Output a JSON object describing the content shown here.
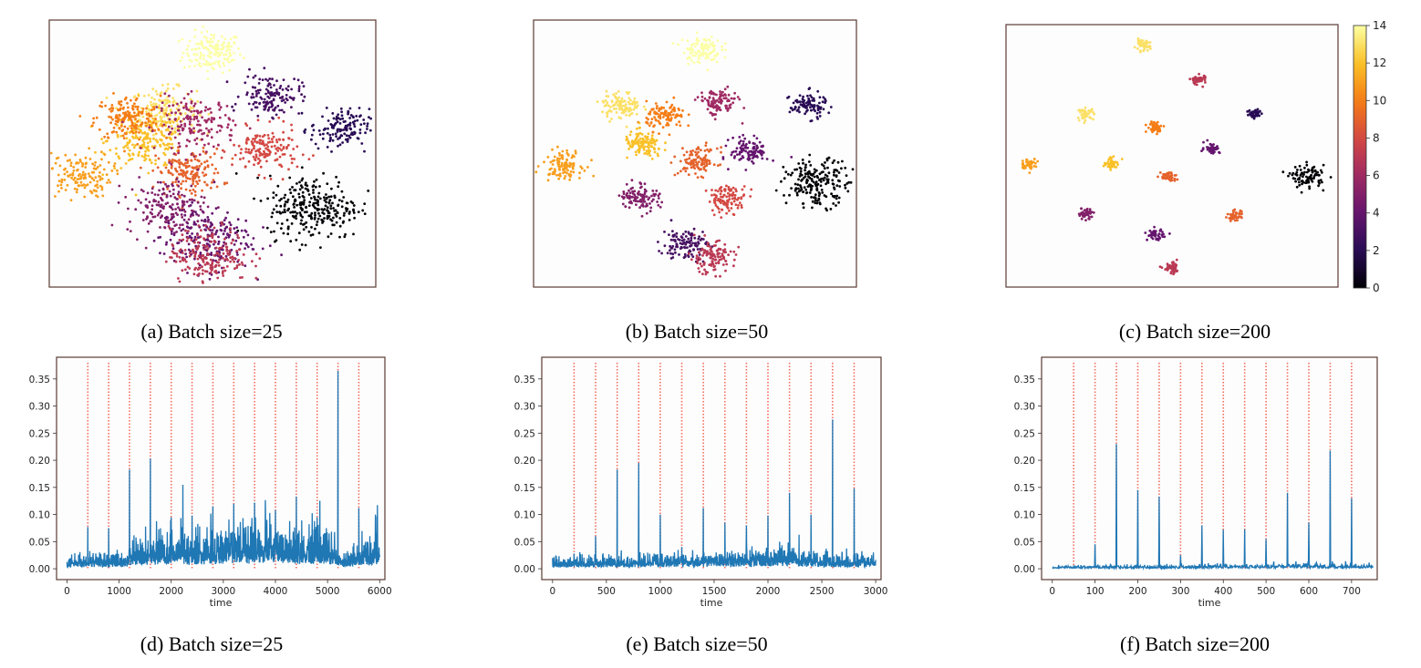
{
  "captions": {
    "a": "(a) Batch size=25",
    "b": "(b) Batch size=50",
    "c": "(c) Batch size=200",
    "d": "(d) Batch size=25",
    "e": "(e) Batch size=50",
    "f": "(f) Batch size=200"
  },
  "colorbar": {
    "min": 0,
    "max": 14,
    "ticks": [
      "0",
      "2",
      "4",
      "6",
      "8",
      "10",
      "12",
      "14"
    ],
    "colormap": "inferno"
  },
  "chart_data": [
    {
      "type": "scatter",
      "caption": "(a) Batch size=25",
      "xlim": [
        0,
        1
      ],
      "ylim": [
        0,
        1
      ],
      "clusters": [
        {
          "label": 14,
          "x": 0.5,
          "y": 0.88,
          "spread": 0.045,
          "n": 160
        },
        {
          "label": 13,
          "x": 0.35,
          "y": 0.66,
          "spread": 0.05,
          "n": 170
        },
        {
          "label": 12,
          "x": 0.3,
          "y": 0.55,
          "spread": 0.06,
          "n": 200
        },
        {
          "label": 10,
          "x": 0.24,
          "y": 0.63,
          "spread": 0.05,
          "n": 170
        },
        {
          "label": 11,
          "x": 0.09,
          "y": 0.42,
          "spread": 0.05,
          "n": 150
        },
        {
          "label": 9,
          "x": 0.43,
          "y": 0.43,
          "spread": 0.05,
          "n": 160
        },
        {
          "label": 6,
          "x": 0.45,
          "y": 0.61,
          "spread": 0.06,
          "n": 170
        },
        {
          "label": 8,
          "x": 0.66,
          "y": 0.51,
          "spread": 0.05,
          "n": 160
        },
        {
          "label": 3,
          "x": 0.68,
          "y": 0.72,
          "spread": 0.045,
          "n": 140
        },
        {
          "label": 2,
          "x": 0.89,
          "y": 0.59,
          "spread": 0.045,
          "n": 140
        },
        {
          "label": 0,
          "x": 0.81,
          "y": 0.3,
          "spread": 0.07,
          "n": 280
        },
        {
          "label": 5,
          "x": 0.36,
          "y": 0.3,
          "spread": 0.06,
          "n": 170
        },
        {
          "label": 4,
          "x": 0.48,
          "y": 0.18,
          "spread": 0.07,
          "n": 220
        },
        {
          "label": 7,
          "x": 0.49,
          "y": 0.12,
          "spread": 0.06,
          "n": 200
        }
      ]
    },
    {
      "type": "scatter",
      "caption": "(b) Batch size=50",
      "xlim": [
        0,
        1
      ],
      "ylim": [
        0,
        1
      ],
      "clusters": [
        {
          "label": 14,
          "x": 0.52,
          "y": 0.89,
          "spread": 0.03,
          "n": 110
        },
        {
          "label": 13,
          "x": 0.27,
          "y": 0.68,
          "spread": 0.03,
          "n": 110
        },
        {
          "label": 10,
          "x": 0.41,
          "y": 0.64,
          "spread": 0.03,
          "n": 110
        },
        {
          "label": 12,
          "x": 0.34,
          "y": 0.53,
          "spread": 0.03,
          "n": 120
        },
        {
          "label": 11,
          "x": 0.09,
          "y": 0.46,
          "spread": 0.03,
          "n": 110
        },
        {
          "label": 9,
          "x": 0.51,
          "y": 0.47,
          "spread": 0.03,
          "n": 110
        },
        {
          "label": 6,
          "x": 0.57,
          "y": 0.69,
          "spread": 0.03,
          "n": 110
        },
        {
          "label": 4,
          "x": 0.67,
          "y": 0.51,
          "spread": 0.03,
          "n": 110
        },
        {
          "label": 2,
          "x": 0.85,
          "y": 0.68,
          "spread": 0.028,
          "n": 100
        },
        {
          "label": 0,
          "x": 0.88,
          "y": 0.39,
          "spread": 0.05,
          "n": 200
        },
        {
          "label": 8,
          "x": 0.6,
          "y": 0.33,
          "spread": 0.03,
          "n": 110
        },
        {
          "label": 5,
          "x": 0.33,
          "y": 0.34,
          "spread": 0.03,
          "n": 110
        },
        {
          "label": 3,
          "x": 0.47,
          "y": 0.16,
          "spread": 0.035,
          "n": 120
        },
        {
          "label": 7,
          "x": 0.55,
          "y": 0.11,
          "spread": 0.035,
          "n": 120
        }
      ]
    },
    {
      "type": "scatter",
      "caption": "(c) Batch size=200",
      "xlim": [
        0,
        1
      ],
      "ylim": [
        0,
        1
      ],
      "clusters": [
        {
          "label": 13,
          "x": 0.41,
          "y": 0.92,
          "spread": 0.012,
          "n": 45
        },
        {
          "label": 7,
          "x": 0.58,
          "y": 0.79,
          "spread": 0.012,
          "n": 45
        },
        {
          "label": 13,
          "x": 0.24,
          "y": 0.66,
          "spread": 0.012,
          "n": 45
        },
        {
          "label": 10,
          "x": 0.45,
          "y": 0.61,
          "spread": 0.012,
          "n": 45
        },
        {
          "label": 2,
          "x": 0.75,
          "y": 0.66,
          "spread": 0.012,
          "n": 45
        },
        {
          "label": 4,
          "x": 0.62,
          "y": 0.53,
          "spread": 0.012,
          "n": 45
        },
        {
          "label": 11,
          "x": 0.07,
          "y": 0.47,
          "spread": 0.012,
          "n": 45
        },
        {
          "label": 12,
          "x": 0.32,
          "y": 0.47,
          "spread": 0.012,
          "n": 45
        },
        {
          "label": 9,
          "x": 0.49,
          "y": 0.42,
          "spread": 0.012,
          "n": 45
        },
        {
          "label": 0,
          "x": 0.91,
          "y": 0.42,
          "spread": 0.025,
          "n": 90
        },
        {
          "label": 5,
          "x": 0.24,
          "y": 0.28,
          "spread": 0.012,
          "n": 45
        },
        {
          "label": 9,
          "x": 0.69,
          "y": 0.27,
          "spread": 0.012,
          "n": 45
        },
        {
          "label": 4,
          "x": 0.45,
          "y": 0.2,
          "spread": 0.012,
          "n": 45
        },
        {
          "label": 7,
          "x": 0.5,
          "y": 0.07,
          "spread": 0.012,
          "n": 45
        }
      ]
    },
    {
      "type": "line",
      "caption": "(d) Batch size=25",
      "xlabel": "time",
      "xlim": [
        -200,
        6100
      ],
      "ylim": [
        -0.02,
        0.39
      ],
      "xticks": [
        0,
        1000,
        2000,
        3000,
        4000,
        5000,
        6000
      ],
      "yticks": [
        0.0,
        0.05,
        0.1,
        0.15,
        0.2,
        0.25,
        0.3,
        0.35
      ],
      "ytick_labels": [
        "0.00",
        "0.05",
        "0.10",
        "0.15",
        "0.20",
        "0.25",
        "0.30",
        "0.35"
      ],
      "length": 6000,
      "vlines": [
        400,
        800,
        1200,
        1600,
        2000,
        2400,
        2800,
        3200,
        3600,
        4000,
        4400,
        4800,
        5200,
        5600
      ],
      "vline_top": 0.38,
      "peaks": [
        {
          "x": 400,
          "y": 0.077
        },
        {
          "x": 800,
          "y": 0.075
        },
        {
          "x": 1200,
          "y": 0.183
        },
        {
          "x": 1600,
          "y": 0.203
        },
        {
          "x": 2000,
          "y": 0.095
        },
        {
          "x": 2400,
          "y": 0.098
        },
        {
          "x": 2800,
          "y": 0.115
        },
        {
          "x": 3200,
          "y": 0.12
        },
        {
          "x": 3600,
          "y": 0.122
        },
        {
          "x": 4000,
          "y": 0.108
        },
        {
          "x": 4400,
          "y": 0.133
        },
        {
          "x": 4800,
          "y": 0.095
        },
        {
          "x": 5200,
          "y": 0.365
        },
        {
          "x": 5600,
          "y": 0.112
        }
      ],
      "noise_profile": [
        {
          "x": 0,
          "y": 0.012
        },
        {
          "x": 1150,
          "y": 0.014
        },
        {
          "x": 1250,
          "y": 0.03
        },
        {
          "x": 3000,
          "y": 0.038
        },
        {
          "x": 4000,
          "y": 0.045
        },
        {
          "x": 5150,
          "y": 0.035
        },
        {
          "x": 5250,
          "y": 0.012
        },
        {
          "x": 5500,
          "y": 0.018
        },
        {
          "x": 6000,
          "y": 0.035
        }
      ]
    },
    {
      "type": "line",
      "caption": "(e) Batch size=50",
      "xlabel": "time",
      "xlim": [
        -100,
        3050
      ],
      "ylim": [
        -0.02,
        0.39
      ],
      "xticks": [
        0,
        500,
        1000,
        1500,
        2000,
        2500,
        3000
      ],
      "yticks": [
        0.0,
        0.05,
        0.1,
        0.15,
        0.2,
        0.25,
        0.3,
        0.35
      ],
      "ytick_labels": [
        "0.00",
        "0.05",
        "0.10",
        "0.15",
        "0.20",
        "0.25",
        "0.30",
        "0.35"
      ],
      "length": 3000,
      "vlines": [
        200,
        400,
        600,
        800,
        1000,
        1200,
        1400,
        1600,
        1800,
        2000,
        2200,
        2400,
        2600,
        2800
      ],
      "vline_top": 0.38,
      "peaks": [
        {
          "x": 200,
          "y": 0.028
        },
        {
          "x": 400,
          "y": 0.06
        },
        {
          "x": 600,
          "y": 0.183
        },
        {
          "x": 800,
          "y": 0.195
        },
        {
          "x": 1000,
          "y": 0.1
        },
        {
          "x": 1200,
          "y": 0.04
        },
        {
          "x": 1400,
          "y": 0.112
        },
        {
          "x": 1600,
          "y": 0.085
        },
        {
          "x": 1800,
          "y": 0.08
        },
        {
          "x": 2000,
          "y": 0.098
        },
        {
          "x": 2200,
          "y": 0.14
        },
        {
          "x": 2400,
          "y": 0.1
        },
        {
          "x": 2600,
          "y": 0.275
        },
        {
          "x": 2800,
          "y": 0.148
        }
      ],
      "noise_profile": [
        {
          "x": 0,
          "y": 0.01
        },
        {
          "x": 1500,
          "y": 0.015
        },
        {
          "x": 2200,
          "y": 0.02
        },
        {
          "x": 2600,
          "y": 0.012
        },
        {
          "x": 3000,
          "y": 0.014
        }
      ]
    },
    {
      "type": "line",
      "caption": "(f) Batch size=200",
      "xlabel": "time",
      "xlim": [
        -25,
        760
      ],
      "ylim": [
        -0.02,
        0.39
      ],
      "xticks": [
        0,
        100,
        200,
        300,
        400,
        500,
        600,
        700
      ],
      "yticks": [
        0.0,
        0.05,
        0.1,
        0.15,
        0.2,
        0.25,
        0.3,
        0.35
      ],
      "ytick_labels": [
        "0.00",
        "0.05",
        "0.10",
        "0.15",
        "0.20",
        "0.25",
        "0.30",
        "0.35"
      ],
      "length": 750,
      "vlines": [
        50,
        100,
        150,
        200,
        250,
        300,
        350,
        400,
        450,
        500,
        550,
        600,
        650,
        700
      ],
      "vline_top": 0.38,
      "peaks": [
        {
          "x": 50,
          "y": 0.005
        },
        {
          "x": 100,
          "y": 0.045
        },
        {
          "x": 150,
          "y": 0.23
        },
        {
          "x": 200,
          "y": 0.145
        },
        {
          "x": 250,
          "y": 0.133
        },
        {
          "x": 300,
          "y": 0.025
        },
        {
          "x": 350,
          "y": 0.08
        },
        {
          "x": 400,
          "y": 0.072
        },
        {
          "x": 450,
          "y": 0.073
        },
        {
          "x": 500,
          "y": 0.055
        },
        {
          "x": 550,
          "y": 0.14
        },
        {
          "x": 600,
          "y": 0.085
        },
        {
          "x": 650,
          "y": 0.218
        },
        {
          "x": 700,
          "y": 0.13
        }
      ],
      "noise_profile": [
        {
          "x": 0,
          "y": 0.003
        },
        {
          "x": 750,
          "y": 0.005
        }
      ]
    }
  ]
}
